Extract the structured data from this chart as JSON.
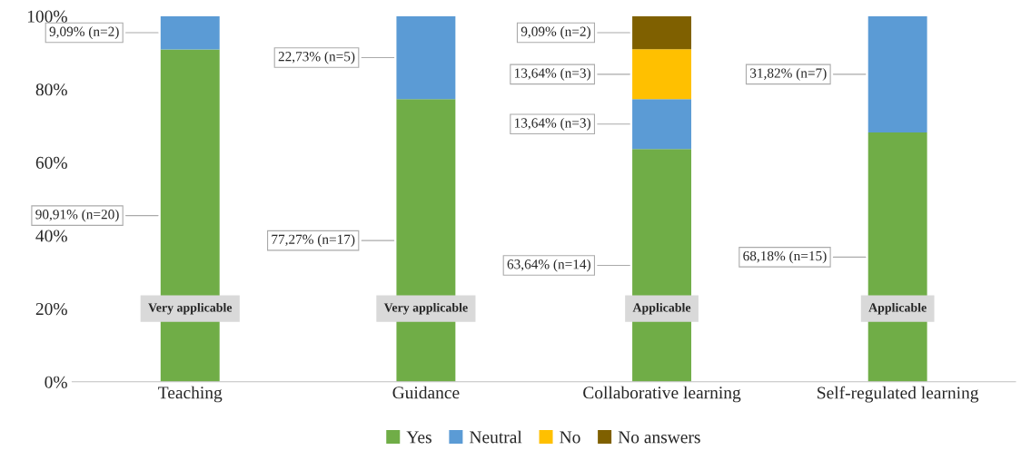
{
  "chart_data": {
    "type": "bar",
    "stacked": true,
    "categories": [
      "Teaching",
      "Guidance",
      "Collaborative learning",
      "Self-regulated learning"
    ],
    "series": [
      {
        "name": "Yes",
        "color": "#70ad47",
        "values": [
          90.91,
          77.27,
          63.64,
          68.18
        ],
        "value_labels": [
          "90,91% (n=20)",
          "77,27% (n=17)",
          "63,64% (n=14)",
          "68,18% (n=15)"
        ]
      },
      {
        "name": "Neutral",
        "color": "#5b9bd5",
        "values": [
          9.09,
          22.73,
          13.64,
          31.82
        ],
        "value_labels": [
          "9,09% (n=2)",
          "22,73% (n=5)",
          "13,64% (n=3)",
          "31,82% (n=7)"
        ]
      },
      {
        "name": "No",
        "color": "#ffc000",
        "values": [
          null,
          null,
          13.64,
          null
        ],
        "value_labels": [
          null,
          null,
          "13,64% (n=3)",
          null
        ]
      },
      {
        "name": "No answers",
        "color": "#7f6000",
        "values": [
          null,
          null,
          9.09,
          null
        ],
        "value_labels": [
          null,
          null,
          "9,09% (n=2)",
          null
        ]
      }
    ],
    "ylim": [
      0,
      100
    ],
    "yticks": [
      {
        "value": 0,
        "label": "0%"
      },
      {
        "value": 20,
        "label": "20%"
      },
      {
        "value": 40,
        "label": "40%"
      },
      {
        "value": 60,
        "label": "60%"
      },
      {
        "value": 80,
        "label": "80%"
      },
      {
        "value": 100,
        "label": "100%"
      }
    ],
    "annotations": [
      "Very applicable",
      "Very applicable",
      "Applicable",
      "Applicable"
    ],
    "grid": false,
    "legend": "bottom"
  }
}
